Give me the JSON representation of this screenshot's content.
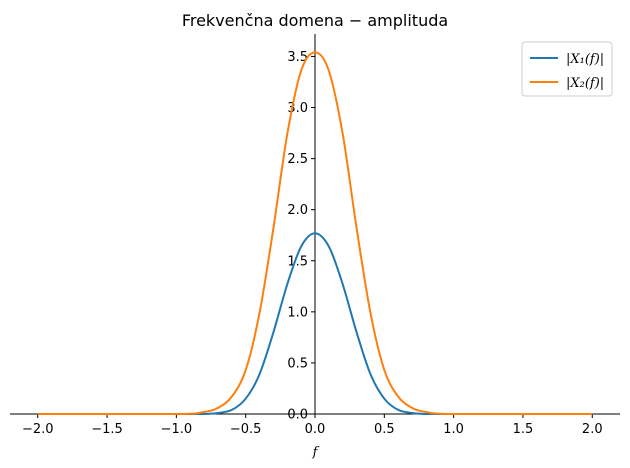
{
  "chart_data": {
    "type": "line",
    "title": "Frekvenčna domena − amplituda",
    "xlabel": "f",
    "ylabel": "",
    "xlim": [
      -2.2,
      2.2
    ],
    "ylim": [
      0,
      3.72
    ],
    "xticks": [
      -2.0,
      -1.5,
      -1.0,
      -0.5,
      0.0,
      0.5,
      1.0,
      1.5,
      2.0
    ],
    "xtick_labels": [
      "−2.0",
      "−1.5",
      "−1.0",
      "−0.5",
      "0.0",
      "0.5",
      "1.0",
      "1.5",
      "2.0"
    ],
    "yticks": [
      0.0,
      0.5,
      1.0,
      1.5,
      2.0,
      2.5,
      3.0,
      3.5
    ],
    "ytick_labels": [
      "0.0",
      "0.5",
      "1.0",
      "1.5",
      "2.0",
      "2.5",
      "3.0",
      "3.5"
    ],
    "grid": false,
    "legend_position": "top-right",
    "x": [
      -2.0,
      -1.0,
      -0.8,
      -0.7,
      -0.6,
      -0.5,
      -0.4,
      -0.3,
      -0.2,
      -0.1,
      0.0,
      0.1,
      0.2,
      0.3,
      0.4,
      0.5,
      0.6,
      0.7,
      0.8,
      1.0,
      2.0
    ],
    "series": [
      {
        "name": "|X₁(f)|",
        "color": "#1f77b4",
        "values": [
          0.0,
          0.0,
          0.0,
          0.01,
          0.04,
          0.15,
          0.39,
          0.8,
          1.27,
          1.64,
          1.77,
          1.64,
          1.27,
          0.8,
          0.39,
          0.15,
          0.04,
          0.01,
          0.0,
          0.0,
          0.0
        ]
      },
      {
        "name": "|X₂(f)|",
        "color": "#ff7f0e",
        "values": [
          0.0,
          0.0,
          0.02,
          0.06,
          0.17,
          0.43,
          0.99,
          1.82,
          2.74,
          3.36,
          3.54,
          3.36,
          2.74,
          1.82,
          0.99,
          0.43,
          0.17,
          0.06,
          0.02,
          0.0,
          0.0
        ]
      }
    ]
  }
}
